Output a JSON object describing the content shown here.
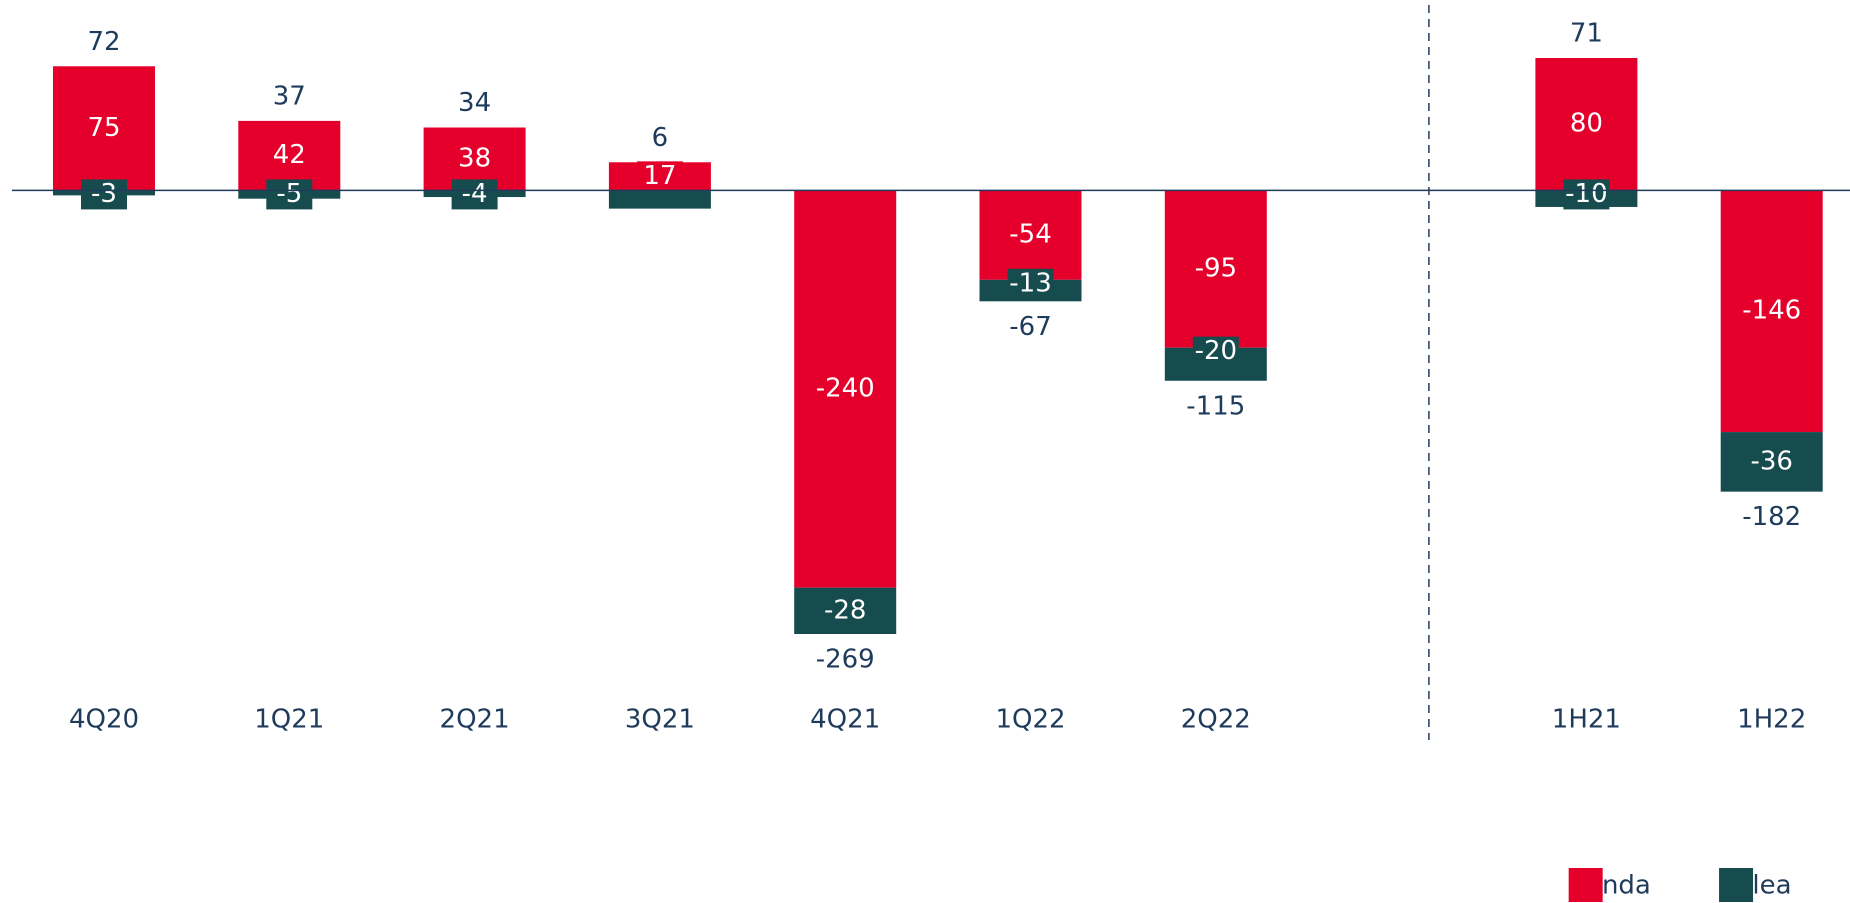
{
  "chart_data": {
    "type": "stacked_bar",
    "categories": [
      "4Q20",
      "1Q21",
      "2Q21",
      "3Q21",
      "4Q21",
      "1Q22",
      "2Q22",
      "1H21",
      "1H22"
    ],
    "series": [
      {
        "name": "Tenda",
        "color": "#e4002b",
        "values": [
          75,
          42,
          38,
          17,
          -240,
          -54,
          -95,
          80,
          -146
        ]
      },
      {
        "name": "Alea",
        "color": "#174c4f",
        "values": [
          -3,
          -5,
          -4,
          -11,
          -28,
          -13,
          -20,
          -10,
          -36
        ],
        "value_labels": [
          "-3",
          "-5",
          "-4",
          null,
          "-28",
          "-13",
          "-20",
          "-10",
          "-36"
        ]
      }
    ],
    "totals": [
      72,
      37,
      34,
      6,
      -269,
      -67,
      -115,
      71,
      -182
    ],
    "legend": "bottom-right"
  }
}
